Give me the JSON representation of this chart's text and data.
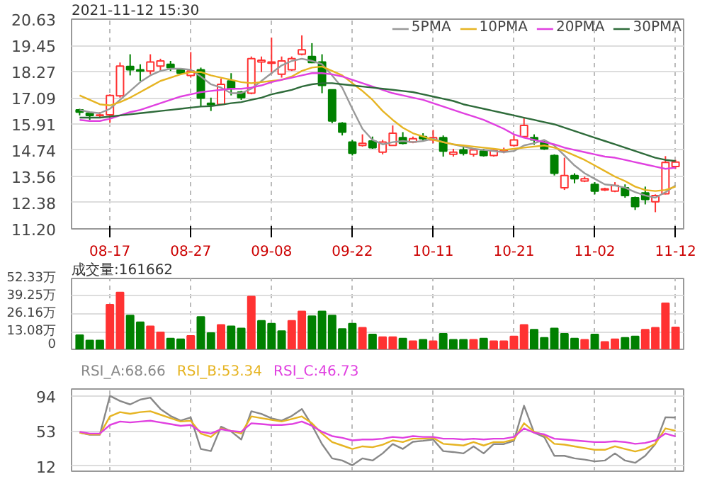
{
  "chart_data": [
    {
      "type": "candlestick",
      "title": "2021-11-12 15:30",
      "categories": [
        null,
        null,
        null,
        "08-17",
        null,
        null,
        null,
        null,
        null,
        null,
        null,
        "08-27",
        null,
        null,
        null,
        null,
        null,
        null,
        null,
        "09-08",
        null,
        null,
        null,
        null,
        null,
        null,
        null,
        "09-22",
        null,
        null,
        null,
        null,
        null,
        null,
        null,
        "10-11",
        null,
        null,
        null,
        null,
        null,
        null,
        null,
        "10-21",
        null,
        null,
        null,
        null,
        null,
        null,
        null,
        "11-02",
        null,
        null,
        null,
        null,
        null,
        null,
        null,
        "11-12"
      ],
      "ohlc": [
        [
          16.55,
          16.6,
          16.3,
          16.45
        ],
        [
          16.4,
          16.45,
          16.1,
          16.3
        ],
        [
          16.3,
          16.45,
          16.2,
          16.32
        ],
        [
          16.33,
          17.25,
          15.98,
          17.2
        ],
        [
          17.18,
          18.68,
          17.1,
          18.52
        ],
        [
          18.5,
          19.05,
          18.1,
          18.35
        ],
        [
          18.35,
          18.6,
          17.85,
          18.3
        ],
        [
          18.3,
          19.05,
          18.15,
          18.7
        ],
        [
          18.52,
          18.85,
          18.3,
          18.75
        ],
        [
          18.6,
          18.75,
          18.3,
          18.45
        ],
        [
          18.35,
          18.4,
          18.15,
          18.2
        ],
        [
          18.1,
          19.15,
          18.0,
          18.3
        ],
        [
          18.35,
          18.45,
          16.7,
          17.08
        ],
        [
          16.85,
          17.1,
          16.5,
          16.78
        ],
        [
          16.8,
          17.95,
          16.75,
          17.7
        ],
        [
          17.85,
          18.2,
          17.2,
          17.5
        ],
        [
          17.35,
          17.4,
          17.0,
          17.1
        ],
        [
          17.3,
          18.95,
          17.25,
          18.85
        ],
        [
          18.7,
          18.95,
          18.25,
          18.78
        ],
        [
          18.65,
          19.8,
          18.15,
          18.7
        ],
        [
          18.15,
          18.95,
          18.0,
          18.75
        ],
        [
          18.35,
          18.95,
          18.3,
          18.85
        ],
        [
          19.05,
          19.9,
          19.0,
          19.25
        ],
        [
          18.95,
          19.55,
          18.65,
          18.68
        ],
        [
          18.7,
          19.05,
          17.3,
          17.65
        ],
        [
          17.45,
          17.45,
          15.95,
          16.05
        ],
        [
          15.95,
          16.0,
          15.4,
          15.55
        ],
        [
          15.1,
          15.2,
          14.5,
          14.6
        ],
        [
          14.95,
          15.45,
          14.9,
          15.05
        ],
        [
          15.15,
          15.35,
          14.8,
          14.85
        ],
        [
          14.65,
          15.2,
          14.55,
          15.1
        ],
        [
          14.95,
          15.85,
          14.95,
          15.5
        ],
        [
          15.3,
          15.55,
          15.0,
          15.05
        ],
        [
          15.1,
          15.35,
          15.05,
          15.25
        ],
        [
          15.35,
          15.5,
          15.15,
          15.25
        ],
        [
          15.2,
          15.65,
          15.05,
          15.3
        ],
        [
          15.3,
          15.4,
          14.45,
          14.7
        ],
        [
          14.55,
          14.8,
          14.45,
          14.65
        ],
        [
          14.75,
          14.95,
          14.5,
          14.6
        ],
        [
          14.55,
          14.8,
          14.45,
          14.75
        ],
        [
          14.7,
          14.8,
          14.45,
          14.5
        ],
        [
          14.5,
          14.75,
          14.45,
          14.72
        ],
        [
          14.7,
          14.85,
          14.6,
          14.75
        ],
        [
          14.95,
          15.4,
          14.9,
          15.2
        ],
        [
          15.35,
          16.2,
          15.3,
          15.85
        ],
        [
          15.3,
          15.45,
          14.98,
          15.2
        ],
        [
          15.1,
          15.15,
          14.75,
          14.8
        ],
        [
          14.5,
          14.55,
          13.6,
          13.7
        ],
        [
          13.05,
          14.4,
          12.95,
          13.6
        ],
        [
          13.6,
          13.7,
          13.25,
          13.45
        ],
        [
          13.35,
          13.55,
          13.3,
          13.45
        ],
        [
          13.2,
          13.3,
          12.75,
          12.9
        ],
        [
          12.95,
          13.05,
          12.9,
          13.0
        ],
        [
          12.9,
          13.3,
          12.85,
          13.15
        ],
        [
          13.05,
          13.2,
          12.6,
          12.7
        ],
        [
          12.6,
          12.65,
          12.05,
          12.2
        ],
        [
          12.82,
          13.1,
          12.3,
          12.52
        ],
        [
          12.42,
          12.75,
          11.95,
          12.7
        ],
        [
          12.78,
          14.47,
          12.75,
          14.19
        ],
        [
          14.0,
          14.3,
          13.9,
          14.2
        ]
      ],
      "colors": [
        "#008000",
        "#008000",
        "#ff3232",
        "#ff3232",
        "#ff3232",
        "#008000",
        "#008000",
        "#ff3232",
        "#ff3232",
        "#008000",
        "#008000",
        "#ff3232",
        "#008000",
        "#008000",
        "#ff3232",
        "#008000",
        "#008000",
        "#ff3232",
        "#ff3232",
        "#ff3232",
        "#ff3232",
        "#ff3232",
        "#ff3232",
        "#008000",
        "#008000",
        "#008000",
        "#008000",
        "#008000",
        "#ff3232",
        "#008000",
        "#ff3232",
        "#ff3232",
        "#008000",
        "#ff3232",
        "#008000",
        "#ff3232",
        "#008000",
        "#ff3232",
        "#008000",
        "#ff3232",
        "#008000",
        "#ff3232",
        "#ff3232",
        "#ff3232",
        "#ff3232",
        "#008000",
        "#008000",
        "#008000",
        "#ff3232",
        "#008000",
        "#ff3232",
        "#008000",
        "#ff3232",
        "#ff3232",
        "#008000",
        "#008000",
        "#008000",
        "#ff3232",
        "#ff3232",
        "#ff3232"
      ],
      "series": [
        {
          "name": "5PMA",
          "type": "line",
          "color": "#999999",
          "values": [
            16.55,
            16.45,
            16.4,
            16.6,
            17.0,
            17.4,
            17.8,
            18.1,
            18.3,
            18.4,
            18.4,
            18.35,
            18.05,
            17.7,
            17.55,
            17.3,
            17.3,
            17.5,
            17.85,
            18.2,
            18.55,
            18.75,
            18.85,
            18.75,
            18.6,
            18.1,
            17.55,
            16.6,
            15.7,
            15.2,
            15.0,
            15.1,
            15.15,
            15.1,
            15.15,
            15.25,
            15.1,
            15.0,
            14.9,
            14.8,
            14.75,
            14.7,
            14.65,
            14.7,
            14.95,
            15.05,
            15.2,
            14.95,
            14.5,
            14.05,
            13.7,
            13.45,
            13.2,
            13.15,
            13.05,
            12.85,
            12.7,
            12.6,
            12.85,
            13.15
          ]
        },
        {
          "name": "10PMA",
          "type": "line",
          "color": "#e6b422",
          "values": [
            17.2,
            17.0,
            16.8,
            16.75,
            16.9,
            17.1,
            17.35,
            17.6,
            17.85,
            18.0,
            18.15,
            18.25,
            18.25,
            18.1,
            18.0,
            17.9,
            17.8,
            17.75,
            17.8,
            17.85,
            17.9,
            18.05,
            18.3,
            18.45,
            18.5,
            18.3,
            18.1,
            17.75,
            17.4,
            17.0,
            16.5,
            16.1,
            15.75,
            15.5,
            15.35,
            15.2,
            15.1,
            15.0,
            14.95,
            14.9,
            14.85,
            14.8,
            14.75,
            14.8,
            14.85,
            14.9,
            14.95,
            14.85,
            14.7,
            14.5,
            14.3,
            14.05,
            13.8,
            13.55,
            13.35,
            13.1,
            12.95,
            12.9,
            12.95,
            13.1
          ]
        },
        {
          "name": "20PMA",
          "type": "line",
          "color": "#e040e0",
          "values": [
            16.1,
            16.05,
            16.05,
            16.15,
            16.3,
            16.45,
            16.55,
            16.7,
            16.85,
            17.0,
            17.15,
            17.25,
            17.35,
            17.4,
            17.45,
            17.5,
            17.5,
            17.55,
            17.65,
            17.8,
            17.9,
            18.0,
            18.1,
            18.2,
            18.2,
            18.15,
            18.05,
            17.9,
            17.75,
            17.6,
            17.45,
            17.3,
            17.2,
            17.1,
            17.0,
            16.85,
            16.7,
            16.55,
            16.4,
            16.25,
            16.1,
            15.9,
            15.7,
            15.45,
            15.3,
            15.2,
            15.1,
            15.0,
            14.85,
            14.75,
            14.65,
            14.55,
            14.45,
            14.4,
            14.3,
            14.2,
            14.1,
            14.0,
            13.9,
            13.95
          ]
        },
        {
          "name": "30PMA",
          "type": "line",
          "color": "#2e6b3a",
          "values": [
            16.2,
            16.2,
            16.2,
            16.25,
            16.3,
            16.35,
            16.4,
            16.45,
            16.5,
            16.55,
            16.6,
            16.65,
            16.7,
            16.72,
            16.78,
            16.85,
            16.9,
            17.0,
            17.1,
            17.25,
            17.35,
            17.45,
            17.6,
            17.7,
            17.75,
            17.75,
            17.7,
            17.65,
            17.6,
            17.55,
            17.5,
            17.45,
            17.4,
            17.35,
            17.25,
            17.15,
            17.05,
            16.95,
            16.8,
            16.7,
            16.6,
            16.5,
            16.4,
            16.3,
            16.2,
            16.1,
            16.0,
            15.9,
            15.75,
            15.6,
            15.45,
            15.3,
            15.15,
            15.0,
            14.85,
            14.7,
            14.55,
            14.4,
            14.3,
            14.25
          ]
        }
      ],
      "ylim": [
        11.2,
        20.63
      ],
      "yticks": [
        {
          "value": 11.2,
          "label": "11.20"
        },
        12.38,
        13.56,
        14.74,
        15.91,
        17.09,
        18.27,
        19.45,
        20.63
      ],
      "grid": true,
      "legend": "top right"
    },
    {
      "type": "bar",
      "title": "成交量:161662",
      "categories": [
        null,
        null,
        null,
        null,
        null,
        null,
        null,
        null,
        null,
        null,
        null,
        null,
        null,
        null,
        null,
        null,
        null,
        null,
        null,
        null,
        null,
        null,
        null,
        null,
        null,
        null,
        null,
        null,
        null,
        null,
        null,
        null,
        null,
        null,
        null,
        null,
        null,
        null,
        null,
        null,
        null,
        null,
        null,
        null,
        null,
        null,
        null,
        null,
        null,
        null,
        null,
        null,
        null,
        null,
        null,
        null,
        null,
        null,
        null,
        null
      ],
      "values": [
        10.5,
        6.5,
        6.5,
        33,
        42,
        25,
        20,
        17,
        12.5,
        8,
        7.5,
        10,
        24,
        12,
        18,
        17,
        15.5,
        39,
        21,
        19,
        13.5,
        21,
        28,
        24.5,
        28,
        25,
        15,
        19,
        16,
        11,
        9,
        9,
        8,
        6,
        7,
        6,
        11.5,
        7,
        7,
        7,
        8,
        6,
        6,
        9.5,
        18,
        14.5,
        8.5,
        15.5,
        11.5,
        8,
        7,
        11,
        5.5,
        7.5,
        8.5,
        9.5,
        14.5,
        16,
        34,
        16.2
      ],
      "colors": [
        "#008000",
        "#008000",
        "#008000",
        "#ff3232",
        "#ff3232",
        "#008000",
        "#008000",
        "#ff3232",
        "#ff3232",
        "#008000",
        "#008000",
        "#ff3232",
        "#008000",
        "#008000",
        "#ff3232",
        "#008000",
        "#008000",
        "#ff3232",
        "#008000",
        "#008000",
        "#008000",
        "#ff3232",
        "#ff3232",
        "#008000",
        "#008000",
        "#008000",
        "#008000",
        "#008000",
        "#ff3232",
        "#008000",
        "#ff3232",
        "#ff3232",
        "#008000",
        "#ff3232",
        "#008000",
        "#ff3232",
        "#008000",
        "#008000",
        "#008000",
        "#ff3232",
        "#008000",
        "#ff3232",
        "#ff3232",
        "#ff3232",
        "#ff3232",
        "#008000",
        "#008000",
        "#008000",
        "#008000",
        "#008000",
        "#ff3232",
        "#008000",
        "#ff3232",
        "#ff3232",
        "#008000",
        "#008000",
        "#ff3232",
        "#ff3232",
        "#ff3232",
        "#ff3232"
      ],
      "ylim": [
        0,
        52.33
      ],
      "yticks": [
        0,
        {
          "value": 13.08,
          "label": "13.08万"
        },
        {
          "value": 26.16,
          "label": "26.16万"
        },
        {
          "value": 39.25,
          "label": "39.25万"
        },
        {
          "value": 52.33,
          "label": "52.33万"
        }
      ],
      "grid": true,
      "tick_labels": "y"
    },
    {
      "type": "line",
      "categories": [
        null,
        null,
        null,
        null,
        null,
        null,
        null,
        null,
        null,
        null,
        null,
        null,
        null,
        null,
        null,
        null,
        null,
        null,
        null,
        null,
        null,
        null,
        null,
        null,
        null,
        null,
        null,
        null,
        null,
        null,
        null,
        null,
        null,
        null,
        null,
        null,
        null,
        null,
        null,
        null,
        null,
        null,
        null,
        null,
        null,
        null,
        null,
        null,
        null,
        null,
        null,
        null,
        null,
        null,
        null,
        null,
        null,
        null,
        null,
        null
      ],
      "series": [
        {
          "name": "RSI_A:68.66",
          "color": "#888888",
          "values": [
            51,
            48.6,
            48.6,
            94,
            88,
            84,
            89.6,
            92,
            78.7,
            70.5,
            65,
            68.8,
            32,
            29.5,
            58,
            52.5,
            43,
            76,
            73,
            67.8,
            65,
            70.5,
            78.7,
            59.6,
            37.7,
            21,
            18.5,
            13,
            21,
            18.5,
            26.8,
            37.7,
            32,
            40.4,
            41.5,
            43,
            29.5,
            28.4,
            26.8,
            35,
            26.8,
            37.7,
            37.7,
            41.5,
            82.5,
            51,
            45.9,
            24,
            24,
            21,
            19.6,
            17.5,
            18.5,
            26.8,
            18.5,
            15.8,
            24,
            37.7,
            69,
            68.66
          ]
        },
        {
          "name": "RSI_B:53.34",
          "color": "#e6b422",
          "values": [
            51,
            49,
            49,
            70,
            75,
            73,
            75,
            76,
            72,
            68,
            64,
            65,
            50,
            46,
            56,
            53,
            50,
            70,
            68,
            66,
            64,
            67,
            70,
            62,
            50,
            40,
            36,
            32,
            35,
            34,
            37,
            42,
            40,
            44,
            44,
            45,
            38,
            37,
            36,
            40,
            36,
            40,
            40,
            43,
            62,
            52,
            48,
            38,
            37,
            35,
            33,
            31,
            31,
            35,
            32,
            29,
            32,
            38,
            56,
            53.34
          ]
        },
        {
          "name": "RSI_C:46.73",
          "color": "#e040e0",
          "values": [
            52,
            50,
            50,
            60,
            64,
            63,
            64,
            65,
            63,
            61,
            59,
            60,
            52,
            50,
            55,
            53,
            52,
            62,
            61,
            60,
            60,
            61,
            64,
            59,
            52,
            47,
            45,
            42,
            43,
            43,
            44,
            46,
            45,
            47,
            46,
            46,
            44,
            44,
            43,
            44,
            43,
            44,
            44,
            46,
            56,
            51,
            49,
            44,
            43,
            42,
            41,
            40,
            40,
            41,
            40,
            38,
            39,
            42,
            50,
            46.73
          ]
        }
      ],
      "ylim": [
        6,
        102
      ],
      "yticks": [
        12,
        53,
        94
      ],
      "grid": true,
      "tick_labels": "y",
      "legend": "top left"
    }
  ]
}
